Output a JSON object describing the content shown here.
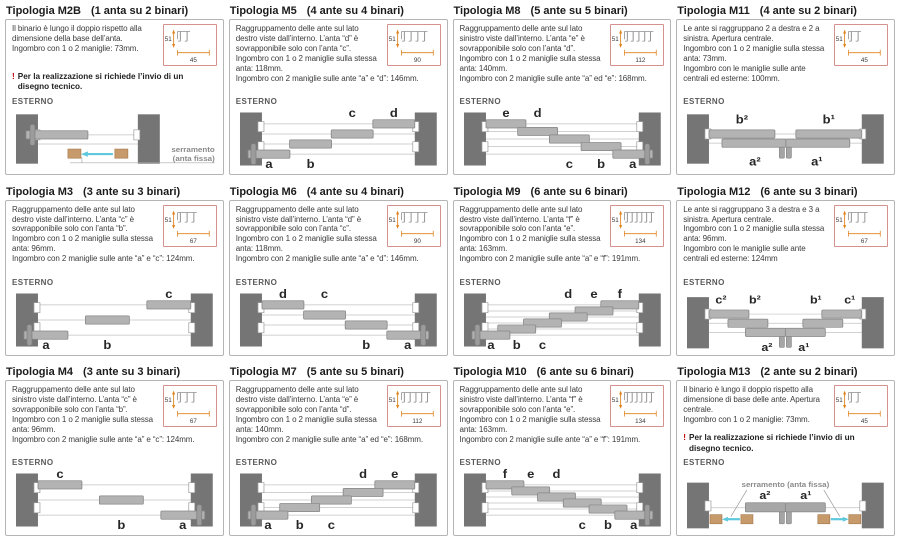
{
  "labels": {
    "esterno": "ESTERNO"
  },
  "colors": {
    "wall": "#757575",
    "panel": "#b3b3b3",
    "panel_stroke": "#878787",
    "panel_dark": "#a7a7a7",
    "track_line": "#c2c2c2",
    "letter": "#262626",
    "tan": "#c79a6b",
    "tan_stroke": "#a87c4f",
    "cyan": "#5ec8dd",
    "dim_orange": "#e0821c",
    "dim_box_border": "#d4918d",
    "dim_glyph": "#8f8f8f",
    "dim_text": "#3a3a3a",
    "warning_red": "#c10000",
    "fixed_label_gray": "#8a8a8a"
  },
  "cells": [
    {
      "id": "M2B",
      "title": "Tipologia M2B",
      "subtitle": "(1 anta su 2 binari)",
      "desc_lines": [
        "Il binario è lungo il doppio rispetto alla dimensione della base dell’anta.",
        "Ingombro con 1 o 2 maniglie: 73mm."
      ],
      "warning": "Per la realizzazione si richiede l’invio di un disegno tecnico.",
      "dim": {
        "height": "51",
        "width": "45",
        "tracks": 2
      },
      "drawing": {
        "kind": "single-fixed",
        "label1": "serramento",
        "label2": "(anta fissa)"
      }
    },
    {
      "id": "M5",
      "title": "Tipologia M5",
      "subtitle": "(4 ante su 4 binari)",
      "desc_lines": [
        "Raggruppamento delle ante sul lato destro viste dall’interno. L’anta “d” è sovrapponibile solo con l’anta “c”.",
        "Ingombro con 1 o 2 maniglie sulla stessa anta: 118mm.",
        "Ingombro con 2 maniglie sulle ante “a” e “d”: 146mm."
      ],
      "warning": null,
      "dim": {
        "height": "51",
        "width": "90",
        "tracks": 4
      },
      "drawing": {
        "kind": "stair",
        "dir": "right",
        "letters": [
          "a",
          "b",
          "c",
          "d"
        ]
      }
    },
    {
      "id": "M8",
      "title": "Tipologia M8",
      "subtitle": "(5 ante su 5 binari)",
      "desc_lines": [
        "Raggruppamento delle ante sul lato sinistro viste dall’interno. L’anta “e” è sovrapponibile solo con l’anta “d”.",
        "Ingombro con 1 o 2 maniglie sulla stessa anta: 140mm.",
        "Ingombro con 2 maniglie sulle ante “a” ed “e”: 168mm."
      ],
      "warning": null,
      "dim": {
        "height": "51",
        "width": "112",
        "tracks": 5
      },
      "drawing": {
        "kind": "stair",
        "dir": "left",
        "letters": [
          "a",
          "b",
          "c",
          "d",
          "e"
        ]
      }
    },
    {
      "id": "M11",
      "title": "Tipologia M11",
      "subtitle": "(4 ante su 2 binari)",
      "desc_lines": [
        "Le ante si raggruppano 2 a destra e 2 a sinistra. Apertura centrale.",
        "Ingombro con 1 o 2 maniglie sulla stessa anta: 73mm.",
        "Ingombro con le maniglie sulle ante centrali ed esterne: 100mm."
      ],
      "warning": null,
      "dim": {
        "height": "51",
        "width": "45",
        "tracks": 2
      },
      "drawing": {
        "kind": "central2",
        "letters_top": [
          "b²",
          "b¹"
        ],
        "letters_bottom": [
          "a²",
          "a¹"
        ]
      }
    },
    {
      "id": "M3",
      "title": "Tipologia M3",
      "subtitle": "(3 ante su 3 binari)",
      "desc_lines": [
        "Raggruppamento delle ante sul lato destro viste dall’interno. L’anta “c” è sovrapponibile solo con l’anta “b”.",
        "Ingombro con 1 o 2 maniglie sulla stessa anta: 96mm.",
        "Ingombro con 2 maniglie sulle ante “a” e “c”: 124mm."
      ],
      "warning": null,
      "dim": {
        "height": "51",
        "width": "67",
        "tracks": 3
      },
      "drawing": {
        "kind": "stair",
        "dir": "right",
        "letters": [
          "a",
          "b",
          "c"
        ]
      }
    },
    {
      "id": "M6",
      "title": "Tipologia M6",
      "subtitle": "(4 ante su 4 binari)",
      "desc_lines": [
        "Raggruppamento delle ante sul lato sinistro viste dall’interno. L’anta “d” è sovrapponibile solo con l’anta “c”.",
        "Ingombro con 1 o 2 maniglie sulla stessa anta: 118mm.",
        "Ingombro con 2 maniglie sulle ante “a” e “d”: 146mm."
      ],
      "warning": null,
      "dim": {
        "height": "51",
        "width": "90",
        "tracks": 4
      },
      "drawing": {
        "kind": "stair",
        "dir": "left",
        "letters": [
          "a",
          "b",
          "c",
          "d"
        ]
      }
    },
    {
      "id": "M9",
      "title": "Tipologia M9",
      "subtitle": "(6 ante su 6 binari)",
      "desc_lines": [
        "Raggruppamento delle ante sul lato destro viste dall’interno. L’anta “f” è sovrapponibile solo con l’anta “e”.",
        "Ingombro con 1 o 2 maniglie sulla stessa anta: 163mm.",
        "Ingombro con 2 maniglie sulle ante “a” e “f”: 191mm."
      ],
      "warning": null,
      "dim": {
        "height": "51",
        "width": "134",
        "tracks": 6
      },
      "drawing": {
        "kind": "stair",
        "dir": "right",
        "letters": [
          "a",
          "b",
          "c",
          "d",
          "e",
          "f"
        ]
      }
    },
    {
      "id": "M12",
      "title": "Tipologia M12",
      "subtitle": "(6 ante su 3 binari)",
      "desc_lines": [
        "Le ante si raggruppano 3 a destra e 3 a sinistra. Apertura centrale.",
        "Ingombro con 1 o 2 maniglie sulla stessa anta: 96mm.",
        "Ingombro con le maniglie sulle ante centrali ed esterne: 124mm"
      ],
      "warning": null,
      "dim": {
        "height": "51",
        "width": "67",
        "tracks": 3
      },
      "drawing": {
        "kind": "central3",
        "letters_top": [
          "c²",
          "b²",
          "b¹",
          "c¹"
        ],
        "letters_bottom": [
          "a²",
          "a¹"
        ]
      }
    },
    {
      "id": "M4",
      "title": "Tipologia M4",
      "subtitle": "(3 ante su 3 binari)",
      "desc_lines": [
        "Raggruppamento delle ante sul lato sinistro viste dall’interno. L’anta “c” è sovrapponibile solo con l’anta “b”.",
        "Ingombro con 1 o 2 maniglie sulla stessa anta: 96mm.",
        "Ingombro con 2 maniglie sulle ante “a” e “c”: 124mm."
      ],
      "warning": null,
      "dim": {
        "height": "51",
        "width": "67",
        "tracks": 3
      },
      "drawing": {
        "kind": "stair",
        "dir": "left",
        "letters": [
          "a",
          "b",
          "c"
        ]
      }
    },
    {
      "id": "M7",
      "title": "Tipologia M7",
      "subtitle": "(5 ante su 5 binari)",
      "desc_lines": [
        "Raggruppamento delle ante sul lato destro viste dall’interno. L’anta “e” è sovrapponibile solo con l’anta “d”.",
        "Ingombro con 1 o 2 maniglie sulla stessa anta: 140mm.",
        "Ingombro con 2 maniglie sulle ante “a” ed “e”: 168mm."
      ],
      "warning": null,
      "dim": {
        "height": "51",
        "width": "112",
        "tracks": 5
      },
      "drawing": {
        "kind": "stair",
        "dir": "right",
        "letters": [
          "a",
          "b",
          "c",
          "d",
          "e"
        ]
      }
    },
    {
      "id": "M10",
      "title": "Tipologia M10",
      "subtitle": "(6 ante su 6 binari)",
      "desc_lines": [
        "Raggruppamento delle ante sul lato sinistro viste dall’interno. L’anta “f” è sovrapponibile solo con l’anta “e”.",
        "Ingombro con 1 o 2 maniglie sulla stessa anta: 163mm.",
        "Ingombro con 2 maniglie sulle ante “a” e “f”: 191mm."
      ],
      "warning": null,
      "dim": {
        "height": "51",
        "width": "134",
        "tracks": 6
      },
      "drawing": {
        "kind": "stair",
        "dir": "left",
        "letters": [
          "a",
          "b",
          "c",
          "d",
          "e",
          "f"
        ]
      }
    },
    {
      "id": "M13",
      "title": "Tipologia M13",
      "subtitle": "(2 ante su 2 binari)",
      "desc_lines": [
        "Il binario è lungo il doppio rispetto alla dimensione di base delle ante. Apertura centrale.",
        "Ingombro con 1 o 2 maniglie: 73mm."
      ],
      "warning": "Per la realizzazione si richiede l’invio di un disegno tecnico.",
      "dim": {
        "height": "51",
        "width": "45",
        "tracks": 2
      },
      "drawing": {
        "kind": "double-fixed",
        "letters_top": [
          "a²",
          "a¹"
        ],
        "label": "serramento (anta fissa)"
      }
    }
  ]
}
